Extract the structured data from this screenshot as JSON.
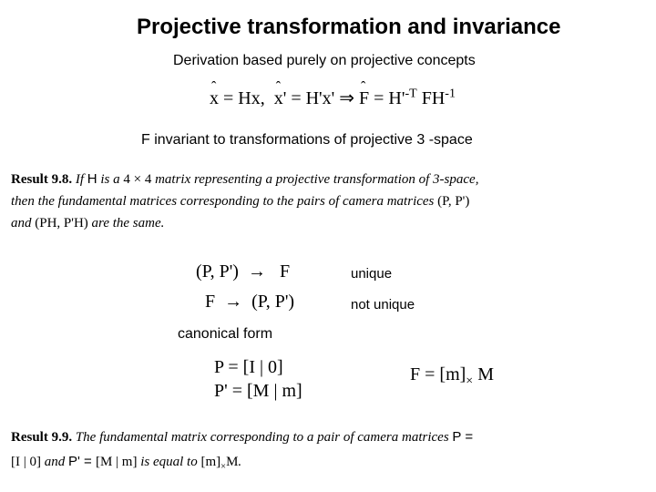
{
  "title": "Projective transformation and invariance",
  "subtitle": "Derivation based purely on projective concepts",
  "eq1": "x̂ = Hx, x̂' = H'x' ⇒ F̂ = H'⁻ᵀ FH⁻¹",
  "sub_f": "F invariant to transformations of projective 3 -space",
  "result98": {
    "label": "Result 9.8.",
    "l1a": "If ",
    "H": "H",
    "l1b": " is a ",
    "mat": "4 × 4",
    "l1c": " matrix representing a projective transformation of 3-space,",
    "l2a": "then the fundamental matrices corresponding to the pairs of camera matrices ",
    "pair1": "(P, P')",
    "l3a": "and ",
    "pair2": "(PH, P'H)",
    "l3b": " are the same."
  },
  "arrow1_lhs": "(P, P')",
  "arrow1_rhs": "F",
  "arrow2_lhs": "F",
  "arrow2_rhs": "(P, P')",
  "unique": "unique",
  "notunique": "not unique",
  "canonical": "canonical form",
  "eq_p1": "P = [I | 0]",
  "eq_p2": "P' = [M | m]",
  "eq_f": "F = [m]× M",
  "result99": {
    "label": "Result 9.9.",
    "l1": "The fundamental matrix corresponding to a pair of camera matrices ",
    "P": "P =",
    "l2a": " and ",
    "Pp": "P' = [M | m]",
    "l2b": " is equal to ",
    "rhs": "[m]× M",
    "I0": "[I | 0]",
    "period": "."
  },
  "colors": {
    "bg": "#ffffff",
    "text": "#000000"
  },
  "fonts": {
    "sans": "Arial",
    "serif": "Georgia"
  }
}
